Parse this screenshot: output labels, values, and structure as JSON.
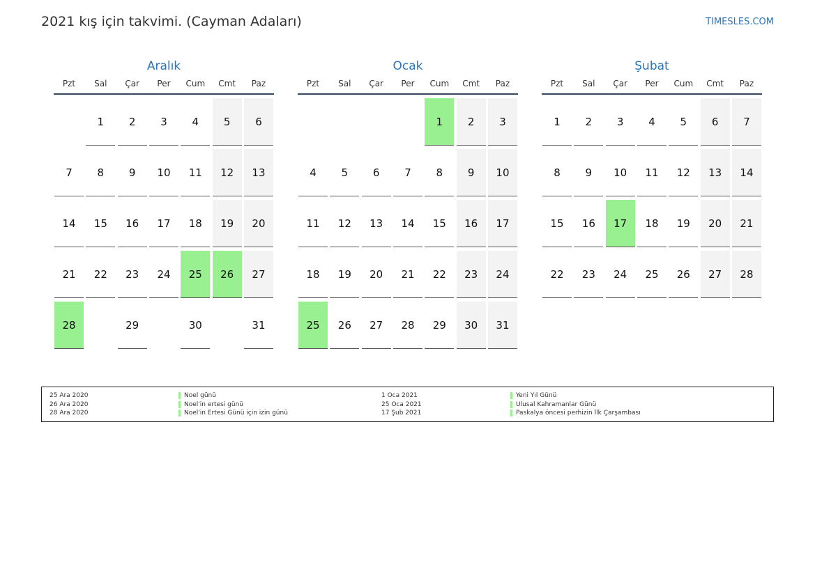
{
  "title": "2021 kış için takvimi. (Cayman Adaları)",
  "site": "TIMESLES.COM",
  "colors": {
    "accent": "#2e75b6",
    "holiday": "#99f090",
    "weekend": "#f3f3f3",
    "rule": "#34495e"
  },
  "weekdays": [
    "Pzt",
    "Sal",
    "Çar",
    "Per",
    "Cum",
    "Cmt",
    "Paz"
  ],
  "months": [
    {
      "name": "Aralık",
      "offset": 1,
      "days": 31,
      "holidays": [
        25,
        26,
        28
      ]
    },
    {
      "name": "Ocak",
      "offset": 4,
      "days": 31,
      "holidays": [
        1,
        25
      ]
    },
    {
      "name": "Şubat",
      "offset": 0,
      "days": 28,
      "holidays": [
        17
      ]
    }
  ],
  "legend": {
    "left": [
      {
        "date": "25 Ara 2020",
        "name": "Noel günü"
      },
      {
        "date": "26 Ara 2020",
        "name": "Noel'in ertesi günü"
      },
      {
        "date": "28 Ara 2020",
        "name": "Noel'in Ertesi Günü için izin günü"
      }
    ],
    "right": [
      {
        "date": "1 Oca 2021",
        "name": "Yeni Yıl Günü"
      },
      {
        "date": "25 Oca 2021",
        "name": "Ulusal Kahramanlar Günü"
      },
      {
        "date": "17 Şub 2021",
        "name": "Paskalya öncesi perhizin İlk Çarşambası"
      }
    ]
  }
}
